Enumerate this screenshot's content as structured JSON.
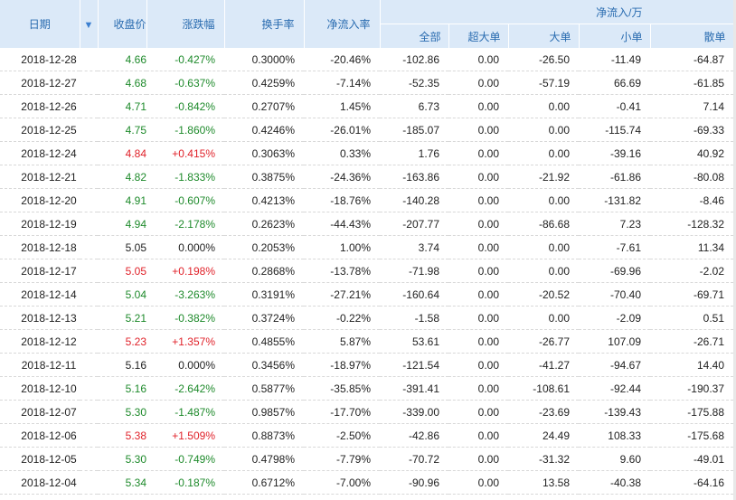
{
  "header": {
    "date": "日期",
    "close": "收盘价",
    "change": "涨跌幅",
    "turnover": "换手率",
    "net_rate": "净流入率",
    "net_flow": "净流入/万",
    "all": "全部",
    "super": "超大单",
    "large": "大单",
    "small": "小单",
    "retail": "散单",
    "sort_icon": "sort-down-arrow"
  },
  "colors": {
    "up": "#e0222a",
    "down": "#1e8a2b",
    "flat": "#222222",
    "header_bg": "#dbe9f8",
    "header_text": "#2a6cb0"
  },
  "rows": [
    {
      "date": "2018-12-28",
      "close": "4.66",
      "change": "-0.427%",
      "turnover": "0.3000%",
      "rate": "-20.46%",
      "all": "-102.86",
      "super": "0.00",
      "large": "-26.50",
      "small": "-11.49",
      "retail": "-64.87",
      "dir": "down"
    },
    {
      "date": "2018-12-27",
      "close": "4.68",
      "change": "-0.637%",
      "turnover": "0.4259%",
      "rate": "-7.14%",
      "all": "-52.35",
      "super": "0.00",
      "large": "-57.19",
      "small": "66.69",
      "retail": "-61.85",
      "dir": "down"
    },
    {
      "date": "2018-12-26",
      "close": "4.71",
      "change": "-0.842%",
      "turnover": "0.2707%",
      "rate": "1.45%",
      "all": "6.73",
      "super": "0.00",
      "large": "0.00",
      "small": "-0.41",
      "retail": "7.14",
      "dir": "down"
    },
    {
      "date": "2018-12-25",
      "close": "4.75",
      "change": "-1.860%",
      "turnover": "0.4246%",
      "rate": "-26.01%",
      "all": "-185.07",
      "super": "0.00",
      "large": "0.00",
      "small": "-115.74",
      "retail": "-69.33",
      "dir": "down"
    },
    {
      "date": "2018-12-24",
      "close": "4.84",
      "change": "+0.415%",
      "turnover": "0.3063%",
      "rate": "0.33%",
      "all": "1.76",
      "super": "0.00",
      "large": "0.00",
      "small": "-39.16",
      "retail": "40.92",
      "dir": "up"
    },
    {
      "date": "2018-12-21",
      "close": "4.82",
      "change": "-1.833%",
      "turnover": "0.3875%",
      "rate": "-24.36%",
      "all": "-163.86",
      "super": "0.00",
      "large": "-21.92",
      "small": "-61.86",
      "retail": "-80.08",
      "dir": "down"
    },
    {
      "date": "2018-12-20",
      "close": "4.91",
      "change": "-0.607%",
      "turnover": "0.4213%",
      "rate": "-18.76%",
      "all": "-140.28",
      "super": "0.00",
      "large": "0.00",
      "small": "-131.82",
      "retail": "-8.46",
      "dir": "down"
    },
    {
      "date": "2018-12-19",
      "close": "4.94",
      "change": "-2.178%",
      "turnover": "0.2623%",
      "rate": "-44.43%",
      "all": "-207.77",
      "super": "0.00",
      "large": "-86.68",
      "small": "7.23",
      "retail": "-128.32",
      "dir": "down"
    },
    {
      "date": "2018-12-18",
      "close": "5.05",
      "change": "0.000%",
      "turnover": "0.2053%",
      "rate": "1.00%",
      "all": "3.74",
      "super": "0.00",
      "large": "0.00",
      "small": "-7.61",
      "retail": "11.34",
      "dir": "flat"
    },
    {
      "date": "2018-12-17",
      "close": "5.05",
      "change": "+0.198%",
      "turnover": "0.2868%",
      "rate": "-13.78%",
      "all": "-71.98",
      "super": "0.00",
      "large": "0.00",
      "small": "-69.96",
      "retail": "-2.02",
      "dir": "up"
    },
    {
      "date": "2018-12-14",
      "close": "5.04",
      "change": "-3.263%",
      "turnover": "0.3191%",
      "rate": "-27.21%",
      "all": "-160.64",
      "super": "0.00",
      "large": "-20.52",
      "small": "-70.40",
      "retail": "-69.71",
      "dir": "down"
    },
    {
      "date": "2018-12-13",
      "close": "5.21",
      "change": "-0.382%",
      "turnover": "0.3724%",
      "rate": "-0.22%",
      "all": "-1.58",
      "super": "0.00",
      "large": "0.00",
      "small": "-2.09",
      "retail": "0.51",
      "dir": "down"
    },
    {
      "date": "2018-12-12",
      "close": "5.23",
      "change": "+1.357%",
      "turnover": "0.4855%",
      "rate": "5.87%",
      "all": "53.61",
      "super": "0.00",
      "large": "-26.77",
      "small": "107.09",
      "retail": "-26.71",
      "dir": "up"
    },
    {
      "date": "2018-12-11",
      "close": "5.16",
      "change": "0.000%",
      "turnover": "0.3456%",
      "rate": "-18.97%",
      "all": "-121.54",
      "super": "0.00",
      "large": "-41.27",
      "small": "-94.67",
      "retail": "14.40",
      "dir": "flat"
    },
    {
      "date": "2018-12-10",
      "close": "5.16",
      "change": "-2.642%",
      "turnover": "0.5877%",
      "rate": "-35.85%",
      "all": "-391.41",
      "super": "0.00",
      "large": "-108.61",
      "small": "-92.44",
      "retail": "-190.37",
      "dir": "down"
    },
    {
      "date": "2018-12-07",
      "close": "5.30",
      "change": "-1.487%",
      "turnover": "0.9857%",
      "rate": "-17.70%",
      "all": "-339.00",
      "super": "0.00",
      "large": "-23.69",
      "small": "-139.43",
      "retail": "-175.88",
      "dir": "down"
    },
    {
      "date": "2018-12-06",
      "close": "5.38",
      "change": "+1.509%",
      "turnover": "0.8873%",
      "rate": "-2.50%",
      "all": "-42.86",
      "super": "0.00",
      "large": "24.49",
      "small": "108.33",
      "retail": "-175.68",
      "dir": "up"
    },
    {
      "date": "2018-12-05",
      "close": "5.30",
      "change": "-0.749%",
      "turnover": "0.4798%",
      "rate": "-7.79%",
      "all": "-70.72",
      "super": "0.00",
      "large": "-31.32",
      "small": "9.60",
      "retail": "-49.01",
      "dir": "down"
    },
    {
      "date": "2018-12-04",
      "close": "5.34",
      "change": "-0.187%",
      "turnover": "0.6712%",
      "rate": "-7.00%",
      "all": "-90.96",
      "super": "0.00",
      "large": "13.58",
      "small": "-40.38",
      "retail": "-64.16",
      "dir": "down"
    }
  ]
}
